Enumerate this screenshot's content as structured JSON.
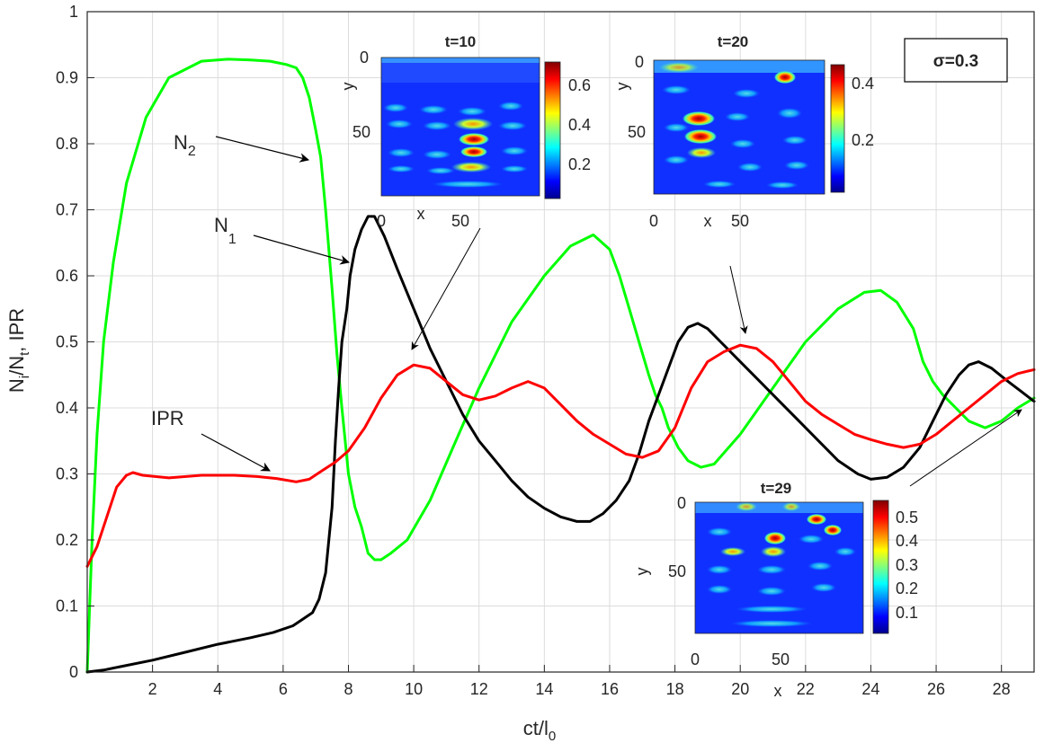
{
  "chart_data": {
    "type": "line",
    "xlabel": "ct/l",
    "xlabel_sub": "0",
    "ylabel": "N",
    "ylabel_sub1": "i",
    "ylabel_mid": "/N",
    "ylabel_sub2": "t",
    "ylabel_tail": ", IPR",
    "xlim": [
      0,
      29
    ],
    "ylim": [
      0,
      1
    ],
    "x_ticks": [
      2,
      4,
      6,
      8,
      10,
      12,
      14,
      16,
      18,
      20,
      22,
      24,
      26,
      28
    ],
    "y_ticks": [
      0,
      0.1,
      0.2,
      0.3,
      0.4,
      0.5,
      0.6,
      0.7,
      0.8,
      0.9,
      1
    ],
    "y_tick_labels": [
      "0",
      "0.1",
      "0.2",
      "0.3",
      "0.4",
      "0.5",
      "0.6",
      "0.7",
      "0.8",
      "0.9",
      "1"
    ],
    "grid": true,
    "series": [
      {
        "name": "N2",
        "label": "N",
        "label_sub": "2",
        "color": "#00ff00",
        "points": [
          [
            0,
            0
          ],
          [
            0.15,
            0.2
          ],
          [
            0.3,
            0.36
          ],
          [
            0.5,
            0.5
          ],
          [
            0.8,
            0.62
          ],
          [
            1.2,
            0.74
          ],
          [
            1.8,
            0.84
          ],
          [
            2.5,
            0.9
          ],
          [
            3.5,
            0.925
          ],
          [
            4.3,
            0.928
          ],
          [
            5,
            0.927
          ],
          [
            5.6,
            0.925
          ],
          [
            6.1,
            0.92
          ],
          [
            6.4,
            0.915
          ],
          [
            6.6,
            0.9
          ],
          [
            6.8,
            0.87
          ],
          [
            7.0,
            0.82
          ],
          [
            7.15,
            0.78
          ],
          [
            7.3,
            0.7
          ],
          [
            7.5,
            0.58
          ],
          [
            7.65,
            0.48
          ],
          [
            7.8,
            0.4
          ],
          [
            7.9,
            0.35
          ],
          [
            8.0,
            0.3
          ],
          [
            8.2,
            0.25
          ],
          [
            8.4,
            0.22
          ],
          [
            8.6,
            0.18
          ],
          [
            8.8,
            0.17
          ],
          [
            9.0,
            0.17
          ],
          [
            9.3,
            0.18
          ],
          [
            9.8,
            0.2
          ],
          [
            10.5,
            0.26
          ],
          [
            11.2,
            0.34
          ],
          [
            12,
            0.43
          ],
          [
            13,
            0.53
          ],
          [
            14,
            0.6
          ],
          [
            14.8,
            0.645
          ],
          [
            15.5,
            0.662
          ],
          [
            16,
            0.64
          ],
          [
            16.3,
            0.6
          ],
          [
            16.6,
            0.55
          ],
          [
            16.9,
            0.5
          ],
          [
            17.2,
            0.45
          ],
          [
            17.4,
            0.42
          ],
          [
            17.6,
            0.4
          ],
          [
            17.8,
            0.37
          ],
          [
            18.1,
            0.34
          ],
          [
            18.4,
            0.32
          ],
          [
            18.8,
            0.31
          ],
          [
            19.2,
            0.315
          ],
          [
            20,
            0.36
          ],
          [
            21,
            0.43
          ],
          [
            22,
            0.5
          ],
          [
            23,
            0.55
          ],
          [
            23.8,
            0.575
          ],
          [
            24.3,
            0.578
          ],
          [
            24.8,
            0.56
          ],
          [
            25.3,
            0.52
          ],
          [
            25.6,
            0.47
          ],
          [
            25.9,
            0.44
          ],
          [
            26.2,
            0.42
          ],
          [
            26.6,
            0.4
          ],
          [
            27,
            0.38
          ],
          [
            27.5,
            0.37
          ],
          [
            28,
            0.38
          ],
          [
            28.5,
            0.4
          ],
          [
            29,
            0.415
          ]
        ]
      },
      {
        "name": "N1",
        "label": "N",
        "label_sub": "1",
        "color": "#000000",
        "points": [
          [
            0,
            0
          ],
          [
            0.5,
            0.003
          ],
          [
            1,
            0.008
          ],
          [
            2,
            0.018
          ],
          [
            3,
            0.03
          ],
          [
            4,
            0.042
          ],
          [
            5,
            0.052
          ],
          [
            5.7,
            0.06
          ],
          [
            6.3,
            0.07
          ],
          [
            6.6,
            0.08
          ],
          [
            6.9,
            0.09
          ],
          [
            7.1,
            0.11
          ],
          [
            7.3,
            0.15
          ],
          [
            7.5,
            0.25
          ],
          [
            7.6,
            0.35
          ],
          [
            7.7,
            0.43
          ],
          [
            7.8,
            0.5
          ],
          [
            7.95,
            0.55
          ],
          [
            8.05,
            0.6
          ],
          [
            8.2,
            0.64
          ],
          [
            8.4,
            0.67
          ],
          [
            8.6,
            0.69
          ],
          [
            8.8,
            0.69
          ],
          [
            9.1,
            0.66
          ],
          [
            9.5,
            0.61
          ],
          [
            10,
            0.55
          ],
          [
            10.5,
            0.49
          ],
          [
            11,
            0.44
          ],
          [
            11.5,
            0.39
          ],
          [
            12,
            0.35
          ],
          [
            12.5,
            0.32
          ],
          [
            13,
            0.29
          ],
          [
            13.5,
            0.265
          ],
          [
            14,
            0.248
          ],
          [
            14.5,
            0.235
          ],
          [
            15,
            0.228
          ],
          [
            15.4,
            0.228
          ],
          [
            15.8,
            0.24
          ],
          [
            16.2,
            0.26
          ],
          [
            16.6,
            0.29
          ],
          [
            16.9,
            0.33
          ],
          [
            17.2,
            0.38
          ],
          [
            17.5,
            0.42
          ],
          [
            17.8,
            0.46
          ],
          [
            18.1,
            0.5
          ],
          [
            18.4,
            0.522
          ],
          [
            18.7,
            0.528
          ],
          [
            19,
            0.52
          ],
          [
            19.4,
            0.5
          ],
          [
            20,
            0.47
          ],
          [
            20.6,
            0.44
          ],
          [
            21.2,
            0.41
          ],
          [
            21.8,
            0.38
          ],
          [
            22.4,
            0.35
          ],
          [
            23,
            0.32
          ],
          [
            23.6,
            0.3
          ],
          [
            24,
            0.292
          ],
          [
            24.5,
            0.295
          ],
          [
            25,
            0.31
          ],
          [
            25.5,
            0.34
          ],
          [
            25.9,
            0.38
          ],
          [
            26.3,
            0.42
          ],
          [
            26.7,
            0.45
          ],
          [
            27,
            0.465
          ],
          [
            27.3,
            0.47
          ],
          [
            27.7,
            0.46
          ],
          [
            28.2,
            0.44
          ],
          [
            28.6,
            0.425
          ],
          [
            29,
            0.41
          ]
        ]
      },
      {
        "name": "IPR",
        "label": "IPR",
        "color": "#ff0000",
        "points": [
          [
            0,
            0.16
          ],
          [
            0.3,
            0.19
          ],
          [
            0.6,
            0.235
          ],
          [
            0.9,
            0.28
          ],
          [
            1.2,
            0.298
          ],
          [
            1.4,
            0.302
          ],
          [
            1.7,
            0.298
          ],
          [
            2.5,
            0.294
          ],
          [
            3.5,
            0.298
          ],
          [
            4.5,
            0.298
          ],
          [
            5.2,
            0.296
          ],
          [
            5.8,
            0.293
          ],
          [
            6.4,
            0.288
          ],
          [
            6.8,
            0.292
          ],
          [
            7.2,
            0.305
          ],
          [
            7.6,
            0.318
          ],
          [
            8,
            0.335
          ],
          [
            8.5,
            0.37
          ],
          [
            9,
            0.415
          ],
          [
            9.5,
            0.45
          ],
          [
            10,
            0.465
          ],
          [
            10.5,
            0.46
          ],
          [
            11,
            0.44
          ],
          [
            11.5,
            0.42
          ],
          [
            12,
            0.412
          ],
          [
            12.5,
            0.418
          ],
          [
            13,
            0.43
          ],
          [
            13.5,
            0.44
          ],
          [
            14,
            0.43
          ],
          [
            14.5,
            0.405
          ],
          [
            15,
            0.38
          ],
          [
            15.5,
            0.36
          ],
          [
            16,
            0.345
          ],
          [
            16.5,
            0.33
          ],
          [
            17,
            0.325
          ],
          [
            17.5,
            0.335
          ],
          [
            18,
            0.37
          ],
          [
            18.5,
            0.43
          ],
          [
            19,
            0.47
          ],
          [
            19.5,
            0.485
          ],
          [
            20,
            0.495
          ],
          [
            20.5,
            0.49
          ],
          [
            21,
            0.47
          ],
          [
            21.5,
            0.44
          ],
          [
            22,
            0.41
          ],
          [
            22.5,
            0.39
          ],
          [
            23,
            0.375
          ],
          [
            23.5,
            0.36
          ],
          [
            24,
            0.352
          ],
          [
            24.5,
            0.345
          ],
          [
            25,
            0.34
          ],
          [
            25.5,
            0.345
          ],
          [
            26,
            0.36
          ],
          [
            26.5,
            0.38
          ],
          [
            27,
            0.4
          ],
          [
            27.5,
            0.42
          ],
          [
            28,
            0.44
          ],
          [
            28.5,
            0.452
          ],
          [
            29,
            0.458
          ]
        ]
      }
    ],
    "annotations": [
      {
        "id": "label-n2",
        "text": "N",
        "sub": "2",
        "x": 4.5,
        "y": 0.8,
        "arrow_to": [
          9.5,
          0.77
        ]
      },
      {
        "id": "label-n1",
        "text": "N",
        "sub": "1",
        "x": 5.0,
        "y": 0.66,
        "arrow_to": [
          11.0,
          0.63
        ]
      },
      {
        "id": "label-ipr",
        "text": "IPR",
        "x": 3.0,
        "y": 0.375,
        "arrow_to": [
          5.9,
          0.305
        ]
      }
    ],
    "sigma_label": "σ=0.3",
    "insets": [
      {
        "title": "t=10",
        "x_ticks": [
          "0",
          "50"
        ],
        "xlabel": "x",
        "y_ticks": [
          "0",
          "50"
        ],
        "ylabel": "y",
        "colorbar_ticks": [
          "0.6",
          "0.4",
          "0.2"
        ],
        "colorbar_range": [
          0,
          0.7
        ]
      },
      {
        "title": "t=20",
        "x_ticks": [
          "0",
          "50"
        ],
        "xlabel": "x",
        "y_ticks": [
          "0",
          "50"
        ],
        "ylabel": "y",
        "colorbar_ticks": [
          "0.4",
          "0.2"
        ],
        "colorbar_range": [
          0,
          0.45
        ]
      },
      {
        "title": "t=29",
        "x_ticks": [
          "0",
          "50"
        ],
        "xlabel": "x",
        "y_ticks": [
          "0",
          "50"
        ],
        "ylabel": "y",
        "colorbar_ticks": [
          "0.5",
          "0.4",
          "0.3",
          "0.2",
          "0.1"
        ],
        "colorbar_range": [
          0,
          0.56
        ]
      }
    ],
    "pointer_arrows": [
      {
        "from_inset": 0,
        "to": [
          10.0,
          0.47
        ]
      },
      {
        "from_inset": 1,
        "to": [
          20.2,
          0.51
        ]
      },
      {
        "from_inset": 2,
        "to": [
          28.8,
          0.44
        ]
      }
    ]
  },
  "colors": {
    "n2": "#00ff00",
    "n1": "#000000",
    "ipr": "#ff0000",
    "grid": "#dcdcdc",
    "axis": "#262626"
  }
}
